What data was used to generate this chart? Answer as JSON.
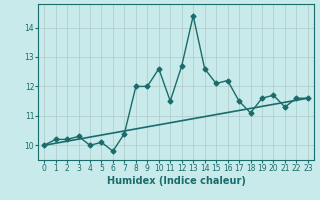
{
  "title": "",
  "xlabel": "Humidex (Indice chaleur)",
  "background_color": "#c8eaea",
  "grid_color": "#b0c8c8",
  "line_color": "#1a6b6b",
  "x_values": [
    0,
    1,
    2,
    3,
    4,
    5,
    6,
    7,
    8,
    9,
    10,
    11,
    12,
    13,
    14,
    15,
    16,
    17,
    18,
    19,
    20,
    21,
    22,
    23
  ],
  "y_values": [
    10.0,
    10.2,
    10.2,
    10.3,
    10.0,
    10.1,
    9.8,
    10.4,
    12.0,
    12.0,
    12.6,
    11.5,
    12.7,
    14.4,
    12.6,
    12.1,
    12.2,
    11.5,
    11.1,
    11.6,
    11.7,
    11.3,
    11.6,
    11.6
  ],
  "trend_x": [
    0,
    23
  ],
  "trend_y": [
    10.0,
    11.6
  ],
  "ylim": [
    9.5,
    14.8
  ],
  "xlim": [
    -0.5,
    23.5
  ],
  "yticks": [
    10,
    11,
    12,
    13,
    14
  ],
  "xticks": [
    0,
    1,
    2,
    3,
    4,
    5,
    6,
    7,
    8,
    9,
    10,
    11,
    12,
    13,
    14,
    15,
    16,
    17,
    18,
    19,
    20,
    21,
    22,
    23
  ],
  "marker": "D",
  "marker_size": 2.5,
  "linewidth": 1.0,
  "xlabel_fontsize": 7,
  "tick_fontsize": 5.5
}
